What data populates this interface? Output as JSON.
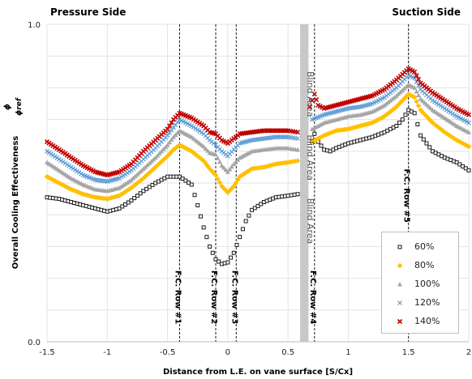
{
  "header": {
    "left": "Pressure Side",
    "right": "Suction Side"
  },
  "chart_data": {
    "type": "scatter",
    "xlabel": "Distance from L.E. on vane surface [S/Cx]",
    "ylabel": "Overall Cooling Effectiveness",
    "ylabel_symbol_num": "ϕ",
    "ylabel_symbol_den": "ϕref",
    "xlim": [
      -1.5,
      2
    ],
    "ylim": [
      0.0,
      1.0
    ],
    "x_ticks": [
      -1.5,
      -1,
      -0.5,
      0,
      0.5,
      1,
      1.5,
      2
    ],
    "x_tick_labels": [
      "-1.5",
      "-1",
      "-0.5",
      "0",
      "0.5",
      "1",
      "1.5",
      "2"
    ],
    "y_tick_labels": [
      {
        "value": 1.0,
        "label": "1.0"
      },
      {
        "value": 0.0,
        "label": "0.0"
      }
    ],
    "grid": {
      "vertical": true,
      "horizontal": true,
      "horizontal_step": 0.1
    },
    "blind_area": {
      "x_start": 0.6,
      "x_end": 0.67,
      "label": "Blind Area",
      "label_count": 3
    },
    "row_lines": [
      {
        "x": -0.4,
        "label": "F.C. Row #1"
      },
      {
        "x": -0.1,
        "label": "F.C. Row #2"
      },
      {
        "x": 0.07,
        "label": "F.C. Row #3"
      },
      {
        "x": 0.72,
        "label": "F.C. Row #4"
      },
      {
        "x": 1.5,
        "label": "F.C. Row #5"
      }
    ],
    "legend_position": "bottom-right",
    "series": [
      {
        "name": "60%",
        "marker": "square-open",
        "color": "#1a1a1a",
        "points": [
          [
            -1.5,
            0.455
          ],
          [
            -1.4,
            0.45
          ],
          [
            -1.3,
            0.44
          ],
          [
            -1.2,
            0.43
          ],
          [
            -1.1,
            0.42
          ],
          [
            -1.0,
            0.41
          ],
          [
            -0.9,
            0.42
          ],
          [
            -0.8,
            0.445
          ],
          [
            -0.7,
            0.475
          ],
          [
            -0.6,
            0.5
          ],
          [
            -0.5,
            0.52
          ],
          [
            -0.4,
            0.52
          ],
          [
            -0.3,
            0.495
          ],
          [
            -0.25,
            0.43
          ],
          [
            -0.2,
            0.36
          ],
          [
            -0.15,
            0.3
          ],
          [
            -0.1,
            0.26
          ],
          [
            -0.05,
            0.245
          ],
          [
            0.0,
            0.25
          ],
          [
            0.05,
            0.28
          ],
          [
            0.1,
            0.33
          ],
          [
            0.15,
            0.38
          ],
          [
            0.2,
            0.415
          ],
          [
            0.3,
            0.44
          ],
          [
            0.4,
            0.455
          ],
          [
            0.5,
            0.46
          ],
          [
            0.58,
            0.465
          ]
        ],
        "points_b": [
          [
            0.7,
            0.63
          ],
          [
            0.72,
            0.655
          ],
          [
            0.75,
            0.63
          ],
          [
            0.8,
            0.605
          ],
          [
            0.85,
            0.6
          ],
          [
            0.9,
            0.61
          ],
          [
            1.0,
            0.625
          ],
          [
            1.1,
            0.635
          ],
          [
            1.2,
            0.645
          ],
          [
            1.3,
            0.66
          ],
          [
            1.4,
            0.68
          ],
          [
            1.45,
            0.7
          ],
          [
            1.5,
            0.73
          ],
          [
            1.55,
            0.72
          ],
          [
            1.6,
            0.65
          ],
          [
            1.7,
            0.6
          ],
          [
            1.8,
            0.58
          ],
          [
            1.9,
            0.565
          ],
          [
            2.0,
            0.54
          ]
        ]
      },
      {
        "name": "80%",
        "marker": "diamond",
        "color": "#ffc000",
        "points": [
          [
            -1.5,
            0.52
          ],
          [
            -1.4,
            0.5
          ],
          [
            -1.3,
            0.48
          ],
          [
            -1.2,
            0.465
          ],
          [
            -1.1,
            0.455
          ],
          [
            -1.0,
            0.45
          ],
          [
            -0.9,
            0.46
          ],
          [
            -0.8,
            0.485
          ],
          [
            -0.7,
            0.515
          ],
          [
            -0.6,
            0.55
          ],
          [
            -0.5,
            0.585
          ],
          [
            -0.45,
            0.605
          ],
          [
            -0.4,
            0.62
          ],
          [
            -0.3,
            0.6
          ],
          [
            -0.2,
            0.57
          ],
          [
            -0.15,
            0.545
          ],
          [
            -0.1,
            0.525
          ],
          [
            -0.05,
            0.49
          ],
          [
            0.0,
            0.47
          ],
          [
            0.05,
            0.49
          ],
          [
            0.1,
            0.52
          ],
          [
            0.2,
            0.545
          ],
          [
            0.3,
            0.55
          ],
          [
            0.4,
            0.56
          ],
          [
            0.5,
            0.565
          ],
          [
            0.58,
            0.57
          ]
        ],
        "points_b": [
          [
            0.7,
            0.63
          ],
          [
            0.8,
            0.65
          ],
          [
            0.9,
            0.665
          ],
          [
            1.0,
            0.67
          ],
          [
            1.1,
            0.68
          ],
          [
            1.2,
            0.69
          ],
          [
            1.3,
            0.71
          ],
          [
            1.4,
            0.74
          ],
          [
            1.5,
            0.78
          ],
          [
            1.55,
            0.77
          ],
          [
            1.6,
            0.73
          ],
          [
            1.7,
            0.69
          ],
          [
            1.8,
            0.66
          ],
          [
            1.9,
            0.635
          ],
          [
            2.0,
            0.615
          ]
        ]
      },
      {
        "name": "100%",
        "marker": "triangle",
        "color": "#a6a6a6",
        "points": [
          [
            -1.5,
            0.565
          ],
          [
            -1.4,
            0.54
          ],
          [
            -1.3,
            0.515
          ],
          [
            -1.2,
            0.495
          ],
          [
            -1.1,
            0.48
          ],
          [
            -1.0,
            0.475
          ],
          [
            -0.9,
            0.485
          ],
          [
            -0.8,
            0.51
          ],
          [
            -0.7,
            0.545
          ],
          [
            -0.6,
            0.58
          ],
          [
            -0.5,
            0.62
          ],
          [
            -0.45,
            0.645
          ],
          [
            -0.4,
            0.665
          ],
          [
            -0.3,
            0.645
          ],
          [
            -0.2,
            0.615
          ],
          [
            -0.15,
            0.595
          ],
          [
            -0.1,
            0.59
          ],
          [
            -0.05,
            0.555
          ],
          [
            0.0,
            0.535
          ],
          [
            0.05,
            0.56
          ],
          [
            0.1,
            0.58
          ],
          [
            0.2,
            0.6
          ],
          [
            0.3,
            0.605
          ],
          [
            0.4,
            0.61
          ],
          [
            0.5,
            0.61
          ],
          [
            0.58,
            0.605
          ]
        ],
        "points_b": [
          [
            0.7,
            0.67
          ],
          [
            0.8,
            0.69
          ],
          [
            0.9,
            0.7
          ],
          [
            1.0,
            0.71
          ],
          [
            1.1,
            0.715
          ],
          [
            1.2,
            0.725
          ],
          [
            1.3,
            0.745
          ],
          [
            1.4,
            0.775
          ],
          [
            1.5,
            0.81
          ],
          [
            1.55,
            0.8
          ],
          [
            1.6,
            0.765
          ],
          [
            1.7,
            0.73
          ],
          [
            1.8,
            0.705
          ],
          [
            1.9,
            0.68
          ],
          [
            2.0,
            0.66
          ]
        ]
      },
      {
        "name": "120%",
        "marker": "x",
        "color": "#5b9bd5",
        "points": [
          [
            -1.5,
            0.6
          ],
          [
            -1.4,
            0.575
          ],
          [
            -1.3,
            0.55
          ],
          [
            -1.2,
            0.525
          ],
          [
            -1.1,
            0.51
          ],
          [
            -1.0,
            0.505
          ],
          [
            -0.9,
            0.515
          ],
          [
            -0.8,
            0.54
          ],
          [
            -0.7,
            0.575
          ],
          [
            -0.6,
            0.61
          ],
          [
            -0.5,
            0.65
          ],
          [
            -0.45,
            0.675
          ],
          [
            -0.4,
            0.7
          ],
          [
            -0.3,
            0.68
          ],
          [
            -0.2,
            0.655
          ],
          [
            -0.15,
            0.635
          ],
          [
            -0.1,
            0.62
          ],
          [
            -0.05,
            0.6
          ],
          [
            0.0,
            0.585
          ],
          [
            0.05,
            0.605
          ],
          [
            0.1,
            0.625
          ],
          [
            0.2,
            0.635
          ],
          [
            0.3,
            0.64
          ],
          [
            0.4,
            0.645
          ],
          [
            0.5,
            0.645
          ],
          [
            0.58,
            0.64
          ]
        ],
        "points_b": [
          [
            0.7,
            0.7
          ],
          [
            0.8,
            0.715
          ],
          [
            0.9,
            0.725
          ],
          [
            1.0,
            0.735
          ],
          [
            1.1,
            0.74
          ],
          [
            1.2,
            0.75
          ],
          [
            1.3,
            0.77
          ],
          [
            1.4,
            0.8
          ],
          [
            1.5,
            0.84
          ],
          [
            1.55,
            0.83
          ],
          [
            1.6,
            0.795
          ],
          [
            1.7,
            0.76
          ],
          [
            1.8,
            0.735
          ],
          [
            1.9,
            0.71
          ],
          [
            2.0,
            0.69
          ]
        ]
      },
      {
        "name": "140%",
        "marker": "x-bold",
        "color": "#c00000",
        "points": [
          [
            -1.5,
            0.63
          ],
          [
            -1.4,
            0.605
          ],
          [
            -1.3,
            0.58
          ],
          [
            -1.2,
            0.555
          ],
          [
            -1.1,
            0.535
          ],
          [
            -1.0,
            0.525
          ],
          [
            -0.9,
            0.535
          ],
          [
            -0.8,
            0.56
          ],
          [
            -0.7,
            0.6
          ],
          [
            -0.6,
            0.635
          ],
          [
            -0.5,
            0.67
          ],
          [
            -0.45,
            0.7
          ],
          [
            -0.4,
            0.72
          ],
          [
            -0.3,
            0.705
          ],
          [
            -0.2,
            0.68
          ],
          [
            -0.15,
            0.66
          ],
          [
            -0.1,
            0.655
          ],
          [
            -0.05,
            0.635
          ],
          [
            0.0,
            0.625
          ],
          [
            0.05,
            0.64
          ],
          [
            0.1,
            0.655
          ],
          [
            0.2,
            0.66
          ],
          [
            0.3,
            0.665
          ],
          [
            0.4,
            0.665
          ],
          [
            0.5,
            0.665
          ],
          [
            0.58,
            0.66
          ]
        ],
        "points_b": [
          [
            0.68,
            0.74
          ],
          [
            0.7,
            0.76
          ],
          [
            0.72,
            0.78
          ],
          [
            0.75,
            0.745
          ],
          [
            0.8,
            0.735
          ],
          [
            0.9,
            0.745
          ],
          [
            1.0,
            0.755
          ],
          [
            1.1,
            0.765
          ],
          [
            1.2,
            0.775
          ],
          [
            1.3,
            0.795
          ],
          [
            1.4,
            0.825
          ],
          [
            1.5,
            0.86
          ],
          [
            1.55,
            0.85
          ],
          [
            1.6,
            0.815
          ],
          [
            1.7,
            0.785
          ],
          [
            1.8,
            0.76
          ],
          [
            1.9,
            0.735
          ],
          [
            2.0,
            0.715
          ]
        ]
      }
    ]
  }
}
